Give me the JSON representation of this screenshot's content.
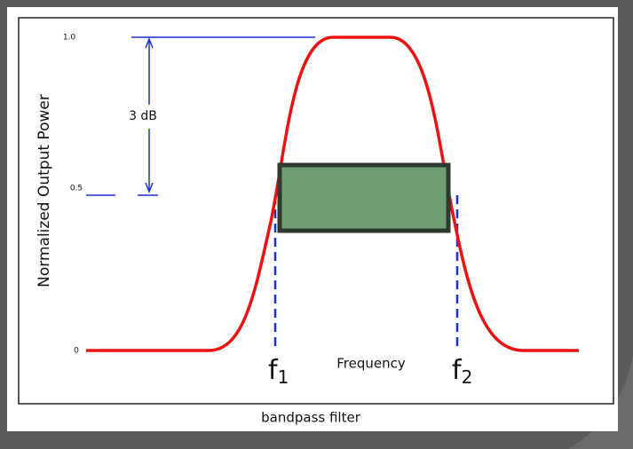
{
  "figure": {
    "y_axis_label": "Normalized Output Power",
    "y_ticks": [
      "1.0",
      "0.5",
      "0"
    ],
    "annotation": "3 dB",
    "x_axis_label": "Frequency",
    "markers": [
      {
        "symbol": "f",
        "subscript": "1"
      },
      {
        "symbol": "f",
        "subscript": "2"
      }
    ]
  },
  "caption": "bandpass filter"
}
